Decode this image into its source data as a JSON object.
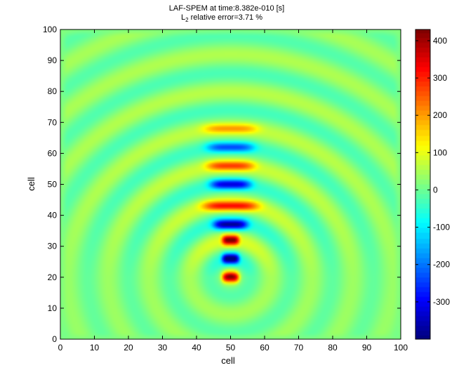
{
  "chart_data": {
    "type": "heatmap",
    "title_line1": "LAF-SPEM at time:8.382e-010 [s]",
    "title_line2_prefix": "L",
    "title_line2_sub": "2",
    "title_line2_rest": " relative error=3.71 %",
    "xlabel": "cell",
    "ylabel": "cell",
    "xlim": [
      0,
      100
    ],
    "ylim": [
      0,
      100
    ],
    "xticks": [
      0,
      10,
      20,
      30,
      40,
      50,
      60,
      70,
      80,
      90,
      100
    ],
    "yticks": [
      0,
      10,
      20,
      30,
      40,
      50,
      60,
      70,
      80,
      90,
      100
    ],
    "colorbar": {
      "min": -400,
      "max": 430,
      "ticks": [
        400,
        300,
        200,
        100,
        0,
        -100,
        -200,
        -300
      ],
      "colormap": "jet"
    },
    "field": {
      "source_x": 50,
      "source_y": 20,
      "background_value": 15,
      "features": [
        {
          "x": 50,
          "y": 20,
          "value": 380,
          "half_width": 2.5
        },
        {
          "x": 50,
          "y": 26,
          "value": -360,
          "half_width": 2.5
        },
        {
          "x": 50,
          "y": 32,
          "value": 370,
          "half_width": 2.5
        },
        {
          "x": 50,
          "y": 37,
          "value": -320,
          "half_width": 5
        },
        {
          "x": 50,
          "y": 43,
          "value": 260,
          "half_width": 8
        },
        {
          "x": 50,
          "y": 50,
          "value": -260,
          "half_width": 6
        },
        {
          "x": 50,
          "y": 56,
          "value": 220,
          "half_width": 7
        },
        {
          "x": 50,
          "y": 62,
          "value": -180,
          "half_width": 7
        },
        {
          "x": 50,
          "y": 68,
          "value": 150,
          "half_width": 8
        }
      ],
      "wavelength_cells": 12,
      "far_field_amplitude": 90
    }
  }
}
